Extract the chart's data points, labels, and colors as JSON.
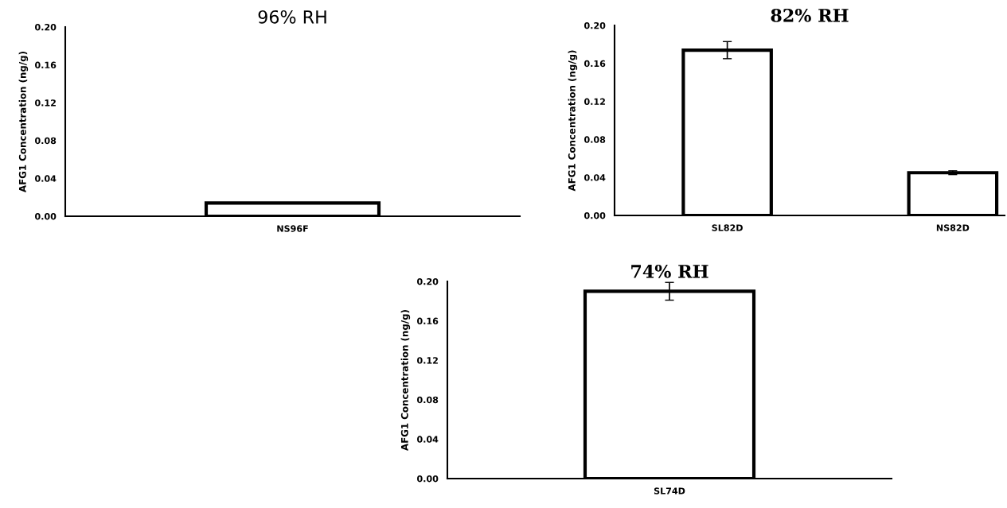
{
  "chart_data": [
    {
      "type": "bar",
      "title": "96% RH",
      "ylabel": "AFG1 Concentration (ng/g)",
      "categories": [
        "NS96F"
      ],
      "values": [
        0.014
      ],
      "color": "#ffffff",
      "ylim": [
        0,
        0.2
      ],
      "yticks": [
        {
          "value": 0,
          "label": "0.00"
        },
        {
          "value": 0.04,
          "label": "0.04"
        },
        {
          "value": 0.08,
          "label": "0.08"
        },
        {
          "value": 0.12,
          "label": "0.12"
        },
        {
          "value": 0.16,
          "label": "0.16"
        },
        {
          "value": 0.2,
          "label": "0.20"
        }
      ],
      "grid": false
    },
    {
      "type": "bar",
      "title": "82% RH",
      "ylabel": "AFG1 Concentration (ng/g)",
      "categories": [
        "SL82D",
        "NS82D"
      ],
      "values": [
        0.174,
        0.045
      ],
      "errors": [
        0.009,
        0.002
      ],
      "color": "#ffffff",
      "ylim": [
        0,
        0.2
      ],
      "yticks": [
        {
          "value": 0,
          "label": "0.00"
        },
        {
          "value": 0.04,
          "label": "0.04"
        },
        {
          "value": 0.08,
          "label": "0.08"
        },
        {
          "value": 0.12,
          "label": "0.12"
        },
        {
          "value": 0.16,
          "label": "0.16"
        },
        {
          "value": 0.2,
          "label": "0.20"
        }
      ],
      "grid": false
    },
    {
      "type": "bar",
      "title": "74% RH",
      "ylabel": "AFG1 Concentration (ng/g)",
      "categories": [
        "SL74D"
      ],
      "values": [
        0.19
      ],
      "errors": [
        0.009
      ],
      "color": "#ffffff",
      "ylim": [
        0,
        0.2
      ],
      "yticks": [
        {
          "value": 0,
          "label": "0.00"
        },
        {
          "value": 0.04,
          "label": "0.04"
        },
        {
          "value": 0.08,
          "label": "0.08"
        },
        {
          "value": 0.12,
          "label": "0.12"
        },
        {
          "value": 0.16,
          "label": "0.16"
        },
        {
          "value": 0.2,
          "label": "0.20"
        }
      ],
      "grid": false
    }
  ]
}
